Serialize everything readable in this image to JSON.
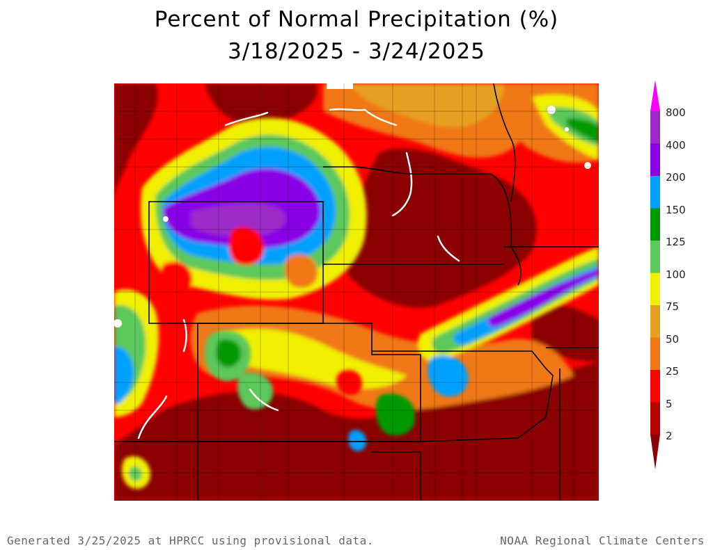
{
  "title": {
    "line1": "Percent of Normal Precipitation (%)",
    "line2": "3/18/2025 - 3/24/2025"
  },
  "legend": {
    "classes": [
      {
        "label": "800",
        "color": "#ff00ff"
      },
      {
        "label": "400",
        "color": "#9b29c7"
      },
      {
        "label": "200",
        "color": "#8a00e6"
      },
      {
        "label": "150",
        "color": "#00a0ff"
      },
      {
        "label": "125",
        "color": "#009a00"
      },
      {
        "label": "100",
        "color": "#5cc85c"
      },
      {
        "label": "75",
        "color": "#f0f000"
      },
      {
        "label": "50",
        "color": "#e6a020"
      },
      {
        "label": "25",
        "color": "#f07818"
      },
      {
        "label": "5",
        "color": "#ff0000"
      },
      {
        "label": "2",
        "color": "#b80000"
      }
    ],
    "bottom_color": "#8b0000"
  },
  "map": {
    "background_color": "#ff0000",
    "dry_color": "#8b0000",
    "water_color": "#ffffff"
  },
  "footer": {
    "left": "Generated 3/25/2025 at HPRCC using provisional data.",
    "right": "NOAA Regional Climate Centers"
  }
}
